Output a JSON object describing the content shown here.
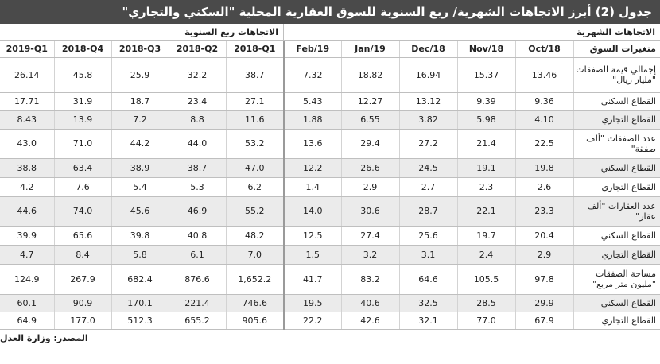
{
  "title": "جدول (2) أبرز الاتجاهات الشهرية/ ربع السنوية للسوق العقارية المحلية \"السكني والتجاري\"",
  "groups": {
    "quarterly": "الاتجاهات ربع السنوية",
    "monthly": "الاتجاهات الشهرية"
  },
  "columns": [
    "2019-Q1",
    "2018-Q4",
    "2018-Q3",
    "2018-Q2",
    "2018-Q1",
    "Feb/19",
    "Jan/19",
    "Dec/18",
    "Nov/18",
    "Oct/18",
    "متغيرات السوق"
  ],
  "rows": [
    {
      "label": "إجمالي قيمة الصفقات \"مليار ريال\"",
      "values": [
        "26.14",
        "45.8",
        "25.9",
        "32.2",
        "38.7",
        "7.32",
        "18.82",
        "16.94",
        "15.37",
        "13.46"
      ],
      "h": 44,
      "alt": false
    },
    {
      "label": "القطاع السكني",
      "values": [
        "17.71",
        "31.9",
        "18.7",
        "23.4",
        "27.1",
        "5.43",
        "12.27",
        "13.12",
        "9.39",
        "9.36"
      ],
      "h": 23,
      "alt": false
    },
    {
      "label": "القطاع التجاري",
      "values": [
        "8.43",
        "13.9",
        "7.2",
        "8.8",
        "11.6",
        "1.88",
        "6.55",
        "3.82",
        "5.98",
        "4.10"
      ],
      "h": 23,
      "alt": true
    },
    {
      "label": "عدد الصفقات \"ألف صفقة\"",
      "values": [
        "43.0",
        "71.0",
        "44.2",
        "44.0",
        "53.2",
        "13.6",
        "29.4",
        "27.2",
        "21.4",
        "22.5"
      ],
      "h": 37,
      "alt": false
    },
    {
      "label": "القطاع السكني",
      "values": [
        "38.8",
        "63.4",
        "38.9",
        "38.7",
        "47.0",
        "12.2",
        "26.6",
        "24.5",
        "19.1",
        "19.8"
      ],
      "h": 24,
      "alt": true
    },
    {
      "label": "القطاع التجاري",
      "values": [
        "4.2",
        "7.6",
        "5.4",
        "5.3",
        "6.2",
        "1.4",
        "2.9",
        "2.7",
        "2.3",
        "2.6"
      ],
      "h": 24,
      "alt": false
    },
    {
      "label": "عدد العقارات \"ألف عقار\"",
      "values": [
        "44.6",
        "74.0",
        "45.6",
        "46.9",
        "55.2",
        "14.0",
        "30.6",
        "28.7",
        "22.1",
        "23.3"
      ],
      "h": 37,
      "alt": true
    },
    {
      "label": "القطاع السكني",
      "values": [
        "39.9",
        "65.6",
        "39.8",
        "40.8",
        "48.2",
        "12.5",
        "27.4",
        "25.6",
        "19.7",
        "20.4"
      ],
      "h": 24,
      "alt": false
    },
    {
      "label": "القطاع التجاري",
      "values": [
        "4.7",
        "8.4",
        "5.8",
        "6.1",
        "7.0",
        "1.5",
        "3.2",
        "3.1",
        "2.4",
        "2.9"
      ],
      "h": 24,
      "alt": true
    },
    {
      "label": "مساحة الصفقات \"مليون متر مربع\"",
      "values": [
        "124.9",
        "267.9",
        "682.4",
        "876.6",
        "1,652.2",
        "41.7",
        "83.2",
        "64.6",
        "105.5",
        "97.8"
      ],
      "h": 38,
      "alt": false
    },
    {
      "label": "القطاع السكني",
      "values": [
        "60.1",
        "90.9",
        "170.1",
        "221.4",
        "746.6",
        "19.5",
        "40.6",
        "32.5",
        "28.5",
        "29.9"
      ],
      "h": 22,
      "alt": true
    },
    {
      "label": "القطاع التجاري",
      "values": [
        "64.9",
        "177.0",
        "512.3",
        "655.2",
        "905.6",
        "22.2",
        "42.6",
        "32.1",
        "77.0",
        "67.9"
      ],
      "h": 22,
      "alt": false
    }
  ],
  "source": "المصدر: وزارة العدل"
}
